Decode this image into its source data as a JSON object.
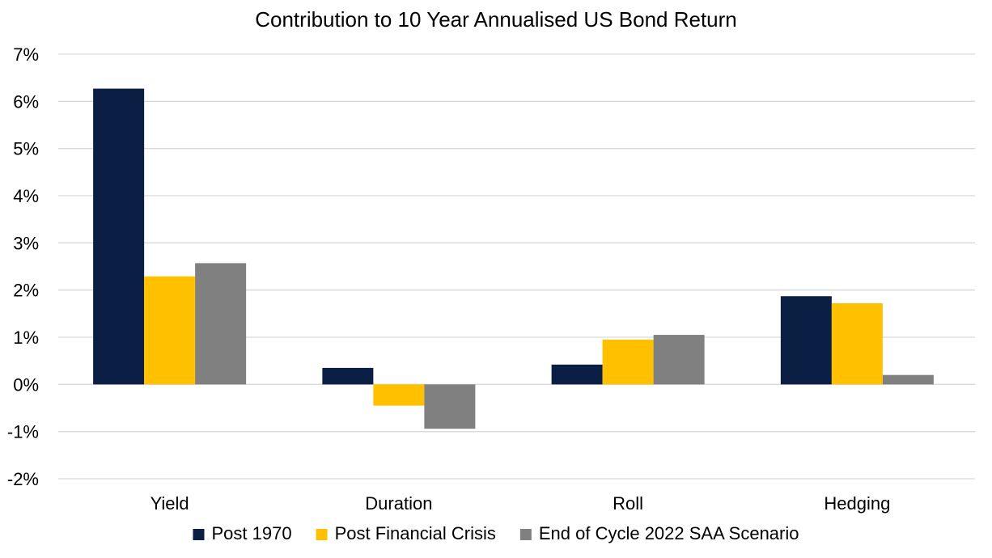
{
  "chart_data": {
    "type": "bar",
    "title": "Contribution to 10 Year Annualised US Bond Return",
    "categories": [
      "Yield",
      "Duration",
      "Roll",
      "Hedging"
    ],
    "series": [
      {
        "name": "Post 1970",
        "color": "#0b1f44",
        "values": [
          6.27,
          0.35,
          0.42,
          1.87
        ]
      },
      {
        "name": "Post Financial Crisis",
        "color": "#ffc000",
        "values": [
          2.29,
          -0.45,
          0.95,
          1.72
        ]
      },
      {
        "name": "End of Cycle 2022 SAA Scenario",
        "color": "#808080",
        "values": [
          2.57,
          -0.94,
          1.05,
          0.2
        ]
      }
    ],
    "ylim": [
      -2,
      7
    ],
    "yticks": [
      7,
      6,
      5,
      4,
      3,
      2,
      1,
      0,
      -1,
      -2
    ],
    "ytick_labels": [
      "7%",
      "6%",
      "5%",
      "4%",
      "3%",
      "2%",
      "1%",
      "0%",
      "-1%",
      "-2%"
    ],
    "grid": true,
    "legend": "bottom"
  }
}
